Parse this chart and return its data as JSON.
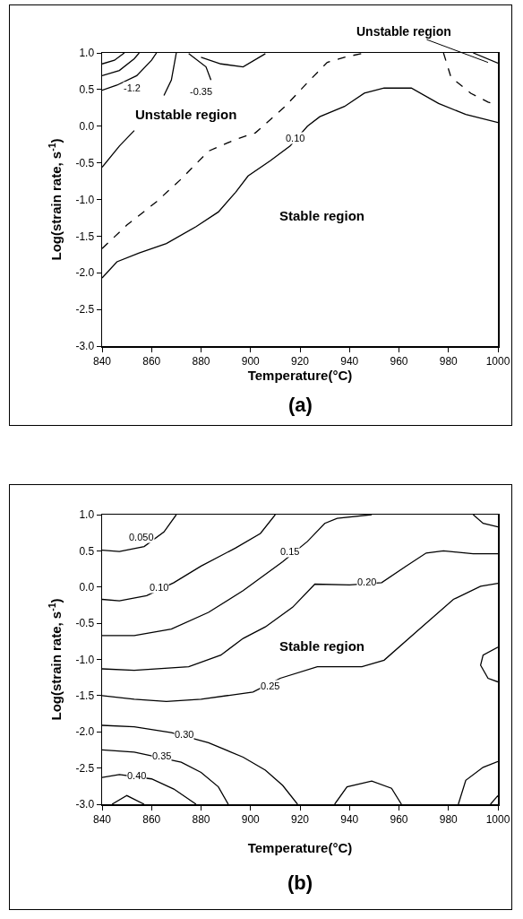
{
  "chart_data": [
    {
      "type": "line",
      "xlabel": "Temperature(°C)",
      "ylabel": "Log(strain rate, s$^{-1}$)",
      "marker": "none",
      "xlim": [
        840,
        1000
      ],
      "xticks": [
        840,
        860,
        880,
        900,
        920,
        940,
        960,
        980,
        1000
      ],
      "ylim": [
        -3,
        1
      ],
      "yticks": [
        {
          "value": 1,
          "label": "1.0"
        },
        {
          "value": 0.5,
          "label": "0.5"
        },
        {
          "value": 0,
          "label": "0.0"
        },
        {
          "value": -0.5,
          "label": "-0.5"
        },
        {
          "value": -1,
          "label": "-1.0"
        },
        {
          "value": -1.5,
          "label": "-1.5"
        },
        {
          "value": -2,
          "label": "-2.0"
        },
        {
          "value": -2.5,
          "label": "-2.5"
        },
        {
          "value": -3,
          "label": "-3.0"
        }
      ],
      "series": [
        {
          "color": "#000000",
          "line_style": "dashed",
          "x": [
            840,
            850,
            862,
            872,
            883,
            894,
            902,
            914,
            924,
            931,
            938,
            946
          ],
          "values": [
            -1.67,
            -1.35,
            -1.03,
            -0.72,
            -0.34,
            -0.18,
            -0.09,
            0.27,
            0.63,
            0.87,
            0.94,
            1.0
          ]
        },
        {
          "color": "#000000",
          "line_style": "dashed",
          "x": [
            978,
            981,
            989,
            996,
            1000
          ],
          "values": [
            1.0,
            0.67,
            0.45,
            0.33,
            0.29
          ]
        },
        {
          "color": "#000000",
          "line_style": "solid",
          "x": [
            840,
            846,
            855,
            866,
            878,
            887,
            894,
            899,
            908,
            916,
            923,
            928,
            938,
            946,
            954,
            965,
            976,
            987,
            1000
          ],
          "values": [
            -2.07,
            -1.85,
            -1.73,
            -1.6,
            -1.37,
            -1.17,
            -0.9,
            -0.68,
            -0.47,
            -0.27,
            0.0,
            0.13,
            0.27,
            0.45,
            0.52,
            0.52,
            0.31,
            0.16,
            0.05
          ]
        },
        {
          "color": "#000000",
          "line_style": "solid",
          "x": [
            840,
            847,
            853
          ],
          "values": [
            -0.56,
            -0.27,
            -0.06
          ]
        },
        {
          "color": "#000000",
          "line_style": "solid",
          "x": [
            840,
            845,
            849
          ],
          "values": [
            0.85,
            0.9,
            1.0
          ]
        },
        {
          "color": "#000000",
          "line_style": "solid",
          "x": [
            840,
            847,
            853,
            855
          ],
          "values": [
            0.69,
            0.76,
            0.92,
            1.0
          ]
        },
        {
          "color": "#000000",
          "line_style": "solid",
          "x": [
            840,
            846,
            854,
            860,
            862
          ],
          "values": [
            0.49,
            0.56,
            0.69,
            0.9,
            1.0
          ]
        },
        {
          "color": "#000000",
          "line_style": "solid",
          "x": [
            865,
            868,
            870
          ],
          "values": [
            0.42,
            0.63,
            1.0
          ]
        },
        {
          "color": "#000000",
          "line_style": "solid",
          "x": [
            875,
            882,
            884
          ],
          "values": [
            0.99,
            0.81,
            0.63
          ]
        },
        {
          "color": "#000000",
          "line_style": "solid",
          "x": [
            880,
            888,
            897,
            906
          ],
          "values": [
            0.94,
            0.85,
            0.81,
            0.99
          ]
        },
        {
          "color": "#000000",
          "line_style": "solid",
          "x": [
            990,
            1000
          ],
          "values": [
            1.0,
            0.86
          ]
        }
      ],
      "annotations": [
        {
          "text": "-1.2",
          "x": 852,
          "y": 0.52
        },
        {
          "text": "-0.35",
          "x": 880,
          "y": 0.47
        },
        {
          "text": "0.10",
          "x": 918,
          "y": -0.16
        },
        "Unstable region",
        "Stable region",
        {
          "text": "Unstable region",
          "x": 996,
          "y": 0.87
        },
        "(a)"
      ]
    },
    {
      "type": "line",
      "xlabel": "Temperature(°C)",
      "ylabel": "Log(strain rate, s$^{-1}$)",
      "marker": "none",
      "xlim": [
        840,
        1000
      ],
      "xticks": [
        840,
        860,
        880,
        900,
        920,
        940,
        960,
        980,
        1000
      ],
      "ylim": [
        -3,
        1
      ],
      "yticks": [
        {
          "value": 1,
          "label": "1.0"
        },
        {
          "value": 0.5,
          "label": "0.5"
        },
        {
          "value": 0,
          "label": "0.0"
        },
        {
          "value": -0.5,
          "label": "-0.5"
        },
        {
          "value": -1,
          "label": "-1.0"
        },
        {
          "value": -1.5,
          "label": "-1.5"
        },
        {
          "value": -2,
          "label": "-2.0"
        },
        {
          "value": -2.5,
          "label": "-2.5"
        },
        {
          "value": -3,
          "label": "-3.0"
        }
      ],
      "series": [
        {
          "color": "#000000",
          "line_style": "solid",
          "x": [
            840,
            847,
            857,
            865,
            870
          ],
          "values": [
            0.51,
            0.49,
            0.56,
            0.76,
            1.0
          ]
        },
        {
          "color": "#000000",
          "line_style": "solid",
          "x": [
            840,
            847,
            858,
            869,
            880,
            894,
            904,
            910
          ],
          "values": [
            -0.17,
            -0.19,
            -0.12,
            0.06,
            0.29,
            0.54,
            0.74,
            1.0
          ]
        },
        {
          "color": "#000000",
          "line_style": "solid",
          "x": [
            840,
            853,
            868,
            883,
            897,
            913,
            923,
            930,
            935,
            949
          ],
          "values": [
            -0.67,
            -0.67,
            -0.58,
            -0.35,
            -0.05,
            0.35,
            0.63,
            0.88,
            0.95,
            1.0
          ]
        },
        {
          "color": "#000000",
          "line_style": "solid",
          "x": [
            840,
            853,
            875,
            888,
            897,
            906,
            917,
            926,
            940,
            953,
            963,
            971,
            978,
            990,
            1000
          ],
          "values": [
            -1.13,
            -1.15,
            -1.1,
            -0.94,
            -0.71,
            -0.55,
            -0.28,
            0.04,
            0.03,
            0.06,
            0.29,
            0.47,
            0.5,
            0.46,
            0.46
          ]
        },
        {
          "color": "#000000",
          "line_style": "solid",
          "x": [
            840,
            853,
            866,
            880,
            901,
            912,
            927,
            945,
            954,
            967,
            982,
            993,
            1000
          ],
          "values": [
            -1.5,
            -1.55,
            -1.58,
            -1.55,
            -1.45,
            -1.26,
            -1.1,
            -1.1,
            -1.01,
            -0.62,
            -0.17,
            0.01,
            0.05
          ]
        },
        {
          "color": "#000000",
          "line_style": "solid",
          "x": [
            1000,
            994,
            993,
            996,
            1000
          ],
          "values": [
            -0.83,
            -0.94,
            -1.08,
            -1.26,
            -1.31
          ]
        },
        {
          "color": "#000000",
          "line_style": "solid",
          "x": [
            990,
            994,
            1000
          ],
          "values": [
            1.0,
            0.88,
            0.83
          ]
        },
        {
          "color": "#000000",
          "line_style": "solid",
          "x": [
            840,
            853,
            868,
            883,
            897,
            906,
            913,
            919
          ],
          "values": [
            -1.91,
            -1.93,
            -2.01,
            -2.15,
            -2.35,
            -2.53,
            -2.74,
            -3.0
          ]
        },
        {
          "color": "#000000",
          "line_style": "solid",
          "x": [
            840,
            853,
            872,
            880,
            887,
            891
          ],
          "values": [
            -2.25,
            -2.28,
            -2.42,
            -2.56,
            -2.76,
            -3.0
          ]
        },
        {
          "color": "#000000",
          "line_style": "solid",
          "x": [
            840,
            847,
            860,
            869,
            878
          ],
          "values": [
            -2.63,
            -2.59,
            -2.65,
            -2.79,
            -3.0
          ]
        },
        {
          "color": "#000000",
          "line_style": "solid",
          "x": [
            844,
            850,
            857
          ],
          "values": [
            -3.0,
            -2.88,
            -3.0
          ]
        },
        {
          "color": "#000000",
          "line_style": "solid",
          "x": [
            934,
            939,
            949,
            957,
            961
          ],
          "values": [
            -3.0,
            -2.76,
            -2.68,
            -2.78,
            -3.0
          ]
        },
        {
          "color": "#000000",
          "line_style": "solid",
          "x": [
            984,
            987,
            994,
            1000
          ],
          "values": [
            -3.0,
            -2.67,
            -2.49,
            -2.41
          ]
        },
        {
          "color": "#000000",
          "line_style": "solid",
          "x": [
            997,
            1000
          ],
          "values": [
            -3.0,
            -2.88
          ]
        }
      ],
      "annotations": [
        {
          "text": "0.050",
          "x": 856,
          "y": 0.69
        },
        {
          "text": "0.10",
          "x": 863,
          "y": 0.0
        },
        {
          "text": "0.15",
          "x": 916,
          "y": 0.49
        },
        {
          "text": "0.20",
          "x": 947,
          "y": 0.07
        },
        {
          "text": "0.25",
          "x": 908,
          "y": -1.37
        },
        {
          "text": "0.30",
          "x": 873,
          "y": -2.04
        },
        {
          "text": "0.35",
          "x": 864,
          "y": -2.33
        },
        {
          "text": "0.40",
          "x": 854,
          "y": -2.6
        },
        "Stable region",
        "(b)"
      ]
    }
  ]
}
